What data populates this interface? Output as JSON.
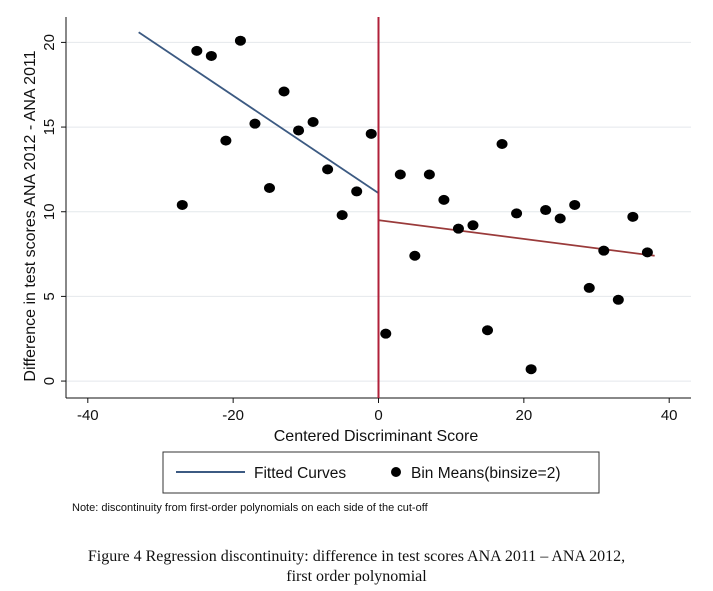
{
  "chart_data": {
    "type": "scatter",
    "xlabel": "Centered Discriminant Score",
    "ylabel": "Difference in test scores ANA 2012 - ANA 2011",
    "xlim": [
      -43,
      43
    ],
    "ylim": [
      -1,
      21.5
    ],
    "xticks": [
      -40,
      -20,
      0,
      20,
      40
    ],
    "yticks": [
      0,
      5,
      10,
      15,
      20
    ],
    "grid": "horizontal",
    "cutoff": 0,
    "cutoff_color": "#b0203a",
    "series": [
      {
        "name": "Bin Means(binsize=2)",
        "kind": "scatter",
        "color": "#000000",
        "points": [
          [
            -27,
            10.4
          ],
          [
            -25,
            19.5
          ],
          [
            -23,
            19.2
          ],
          [
            -21,
            14.2
          ],
          [
            -19,
            20.1
          ],
          [
            -17,
            15.2
          ],
          [
            -15,
            11.4
          ],
          [
            -13,
            17.1
          ],
          [
            -11,
            14.8
          ],
          [
            -9,
            15.3
          ],
          [
            -7,
            12.5
          ],
          [
            -5,
            9.8
          ],
          [
            -3,
            11.2
          ],
          [
            -1,
            14.6
          ],
          [
            1,
            2.8
          ],
          [
            3,
            12.2
          ],
          [
            5,
            7.4
          ],
          [
            7,
            12.2
          ],
          [
            9,
            10.7
          ],
          [
            11,
            9.0
          ],
          [
            13,
            9.2
          ],
          [
            15,
            3.0
          ],
          [
            17,
            14.0
          ],
          [
            19,
            9.9
          ],
          [
            21,
            0.7
          ],
          [
            23,
            10.1
          ],
          [
            25,
            9.6
          ],
          [
            27,
            10.4
          ],
          [
            29,
            5.5
          ],
          [
            31,
            7.7
          ],
          [
            33,
            4.8
          ],
          [
            35,
            9.7
          ],
          [
            37,
            7.6
          ]
        ]
      },
      {
        "name": "Fitted Curves",
        "kind": "line",
        "segments": [
          {
            "color": "#3c5a82",
            "from": [
              -33,
              20.6
            ],
            "to": [
              0,
              11.1
            ]
          },
          {
            "color": "#9a3a3a",
            "from": [
              0,
              9.5
            ],
            "to": [
              38,
              7.4
            ]
          }
        ]
      }
    ],
    "legend": {
      "placement": "bottom",
      "entries": [
        "Fitted Curves",
        "Bin Means(binsize=2)"
      ]
    },
    "note": "Note: discontinuity from first-order polynomials on each side of the cut-off"
  },
  "caption": {
    "line1": "Figure 4   Regression discontinuity: difference in test scores ANA 2011 – ANA 2012,",
    "line2": "first order polynomial"
  }
}
